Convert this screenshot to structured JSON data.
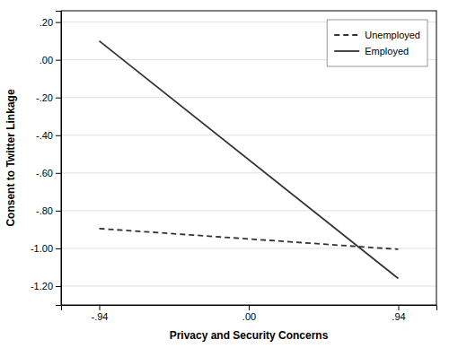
{
  "chart_data": {
    "type": "line",
    "xlabel": "Privacy and Security Concerns",
    "ylabel": "Consent to Twitter Linkage",
    "x": [
      -0.94,
      0.94
    ],
    "series": [
      {
        "name": "Unemployed",
        "color": "#333333",
        "line_style": "dashed",
        "values": [
          -0.895,
          -1.005
        ]
      },
      {
        "name": "Employed",
        "color": "#333333",
        "line_style": "solid",
        "values": [
          0.1,
          -1.16
        ]
      }
    ],
    "xlim": [
      -1.18,
      1.18
    ],
    "xticks": [
      {
        "value": -0.94,
        "label": "-.94"
      },
      {
        "value": 0.0,
        "label": ".00"
      },
      {
        "value": 0.94,
        "label": ".94"
      }
    ],
    "ylim": [
      -1.3,
      0.26
    ],
    "yticks": [
      {
        "value": 0.2,
        "label": ".20"
      },
      {
        "value": 0.0,
        "label": ".00"
      },
      {
        "value": -0.2,
        "label": "-.20"
      },
      {
        "value": -0.4,
        "label": "-.40"
      },
      {
        "value": -0.6,
        "label": "-.60"
      },
      {
        "value": -0.8,
        "label": "-.80"
      },
      {
        "value": -1.0,
        "label": "-1.00"
      },
      {
        "value": -1.2,
        "label": "-1.20"
      }
    ],
    "grid": "y",
    "legend": "upper right"
  }
}
